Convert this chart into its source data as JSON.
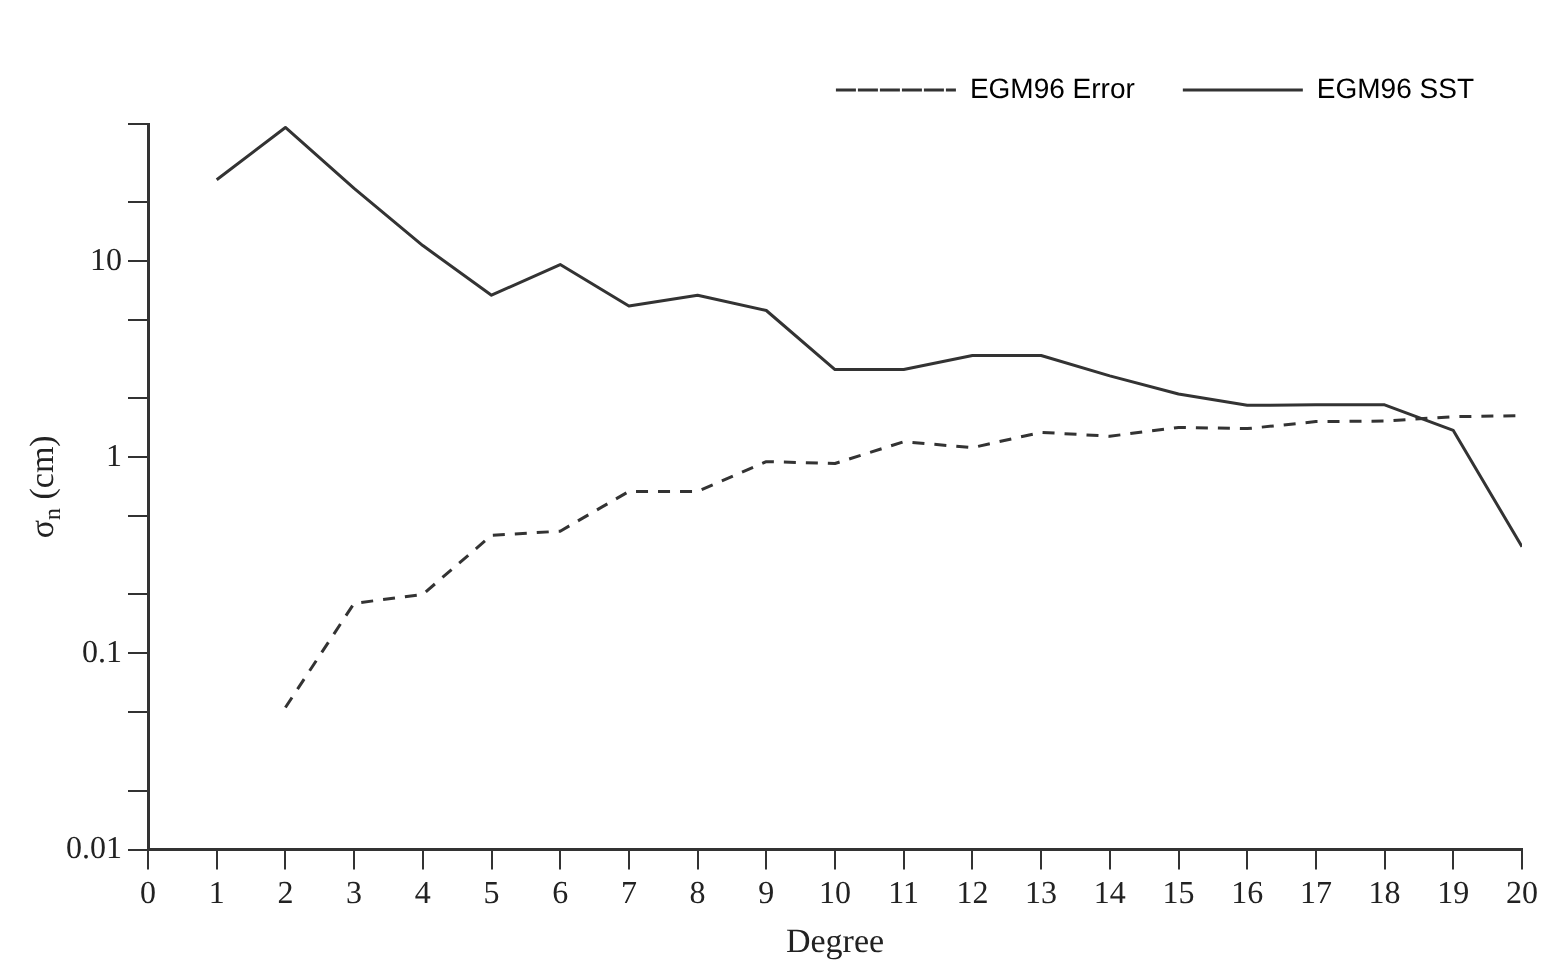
{
  "chart_data": {
    "type": "line",
    "xlabel": "Degree",
    "ylabel": "σ$_{n}$ (cm)",
    "log": "y",
    "xlim": [
      0,
      20
    ],
    "xticks": [
      0,
      1,
      2,
      3,
      4,
      5,
      6,
      7,
      8,
      9,
      10,
      11,
      12,
      13,
      14,
      15,
      16,
      17,
      18,
      19,
      20
    ],
    "ylim": [
      0.01,
      50
    ],
    "yticks": [
      0.01,
      {
        "value": 0.02,
        "label": null
      },
      {
        "value": 0.05,
        "label": null
      },
      0.1,
      {
        "value": 0.2,
        "label": null
      },
      {
        "value": 0.5,
        "label": null
      },
      1,
      {
        "value": 2,
        "label": null
      },
      {
        "value": 5,
        "label": null
      },
      10,
      {
        "value": 20,
        "label": null
      },
      {
        "value": 50,
        "label": null
      }
    ],
    "grid": false,
    "legend": "top right",
    "marker": "none",
    "series": [
      {
        "name": "EGM96 Error",
        "color": "#333333",
        "line_style": "dashed",
        "x": [
          2,
          3,
          4,
          5,
          6,
          7,
          8,
          9,
          10,
          11,
          12,
          13,
          14,
          15,
          16,
          17,
          18,
          19,
          20
        ],
        "values": [
          0.053,
          0.18,
          0.2,
          0.4,
          0.42,
          0.67,
          0.67,
          0.95,
          0.93,
          1.2,
          1.12,
          1.34,
          1.28,
          1.42,
          1.4,
          1.52,
          1.53,
          1.61,
          1.63
        ]
      },
      {
        "name": "EGM96 SST",
        "color": "#333333",
        "line_style": "solid",
        "x": [
          1,
          2,
          3,
          4,
          5,
          6,
          7,
          8,
          9,
          10,
          11,
          12,
          13,
          14,
          15,
          16,
          17,
          18,
          19,
          20
        ],
        "values": [
          26,
          48,
          23.5,
          12,
          6.7,
          9.6,
          5.9,
          6.7,
          5.6,
          2.8,
          2.8,
          3.3,
          3.3,
          2.6,
          2.1,
          1.84,
          1.85,
          1.85,
          1.37,
          0.35
        ]
      }
    ]
  }
}
